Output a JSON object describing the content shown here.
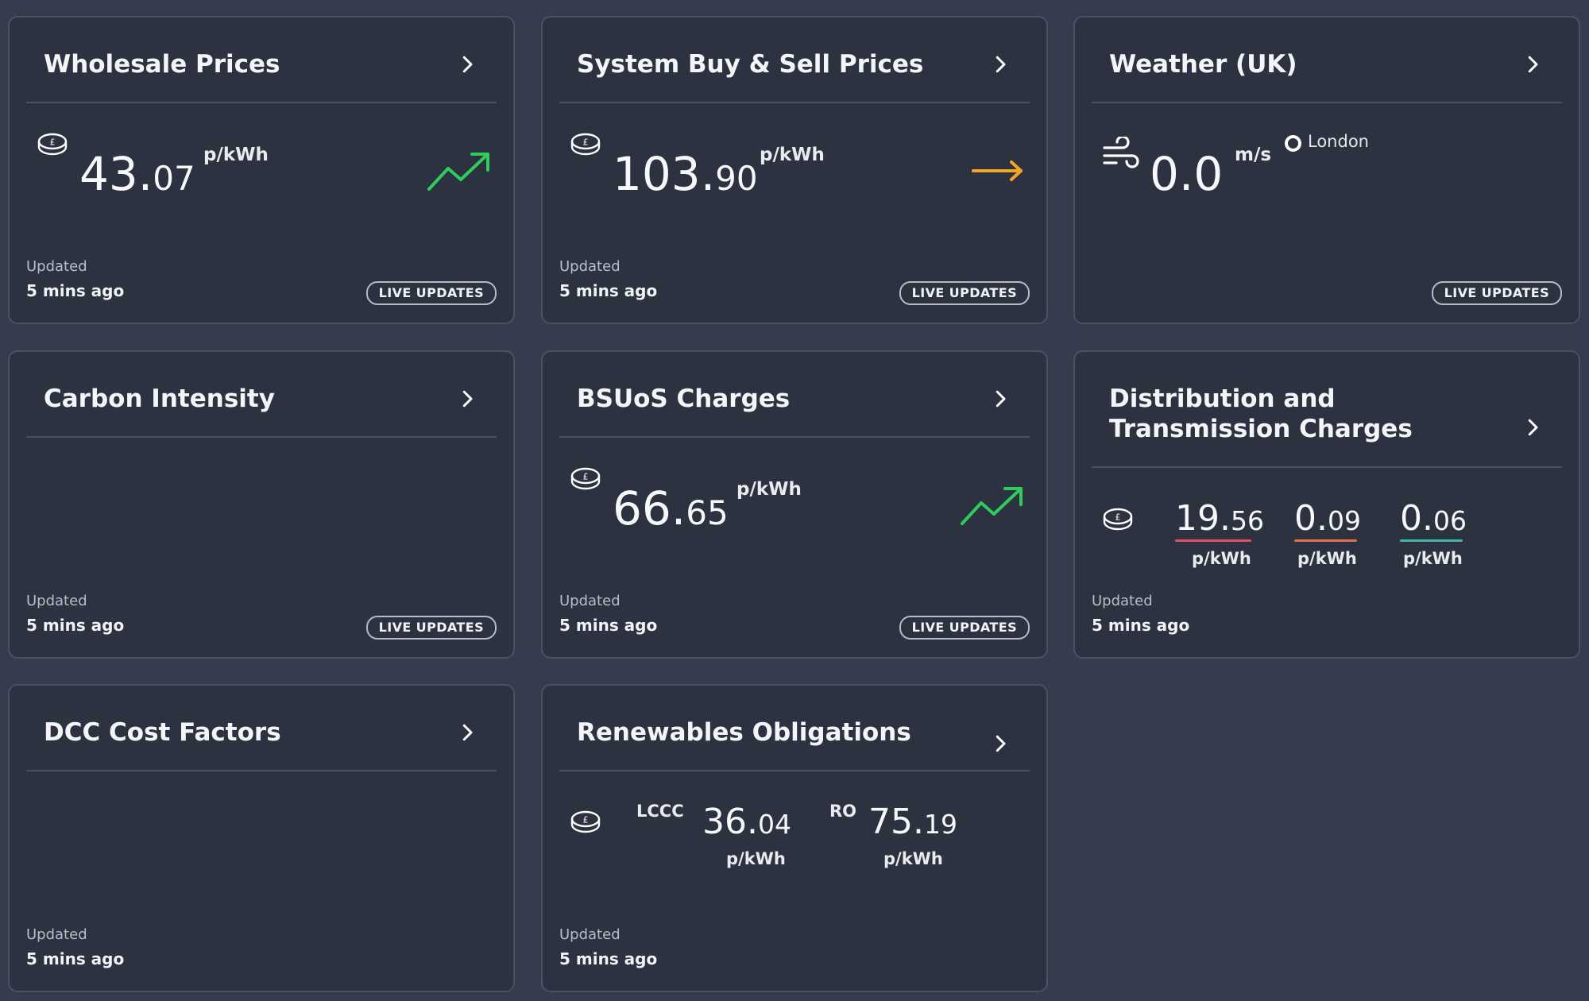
{
  "colors": {
    "background": "#363c4d",
    "card": "#2d3240",
    "trend_up": "#2ecc5b",
    "trend_flat": "#f5a524",
    "line_red": "#e0526a",
    "line_orange": "#e0704e",
    "line_teal": "#3fb9a6"
  },
  "common": {
    "updated_label": "Updated",
    "updated_time": "5 mins ago",
    "live_label": "LIVE UPDATES"
  },
  "wholesale": {
    "title": "Wholesale Prices",
    "value_int": "43.",
    "value_dec": "07",
    "unit": "p/kWh",
    "trend": "up-trend-icon"
  },
  "system": {
    "title": "System Buy & Sell Prices",
    "value_int": "103.",
    "value_dec": "90",
    "unit": "p/kWh",
    "trend": "right-arrow-icon"
  },
  "weather": {
    "title": "Weather (UK)",
    "icon": "wind-icon",
    "value": "0.0",
    "unit": "m/s",
    "location": "London"
  },
  "carbon": {
    "title": "Carbon Intensity"
  },
  "bsuos": {
    "title": "BSUoS Charges",
    "value_int": "66.",
    "value_dec": "65",
    "unit": "p/kWh",
    "trend": "up-trend-icon"
  },
  "distribution": {
    "title_line1": "Distribution and",
    "title_line2": "Transmission Charges",
    "values": [
      {
        "int": "19.",
        "dec": "56",
        "unit": "p/kWh",
        "color": "#e0526a"
      },
      {
        "int": "0.",
        "dec": "09",
        "unit": "p/kWh",
        "color": "#e0704e"
      },
      {
        "int": "0.",
        "dec": "06",
        "unit": "p/kWh",
        "color": "#3fb9a6"
      }
    ]
  },
  "dcc": {
    "title": "DCC Cost Factors"
  },
  "renewables": {
    "title": "Renewables Obligations",
    "lccc_label": "LCCC",
    "lccc_int": "36.",
    "lccc_dec": "04",
    "lccc_unit": "p/kWh",
    "ro_label": "RO",
    "ro_int": "75.",
    "ro_dec": "19",
    "ro_unit": "p/kWh"
  }
}
